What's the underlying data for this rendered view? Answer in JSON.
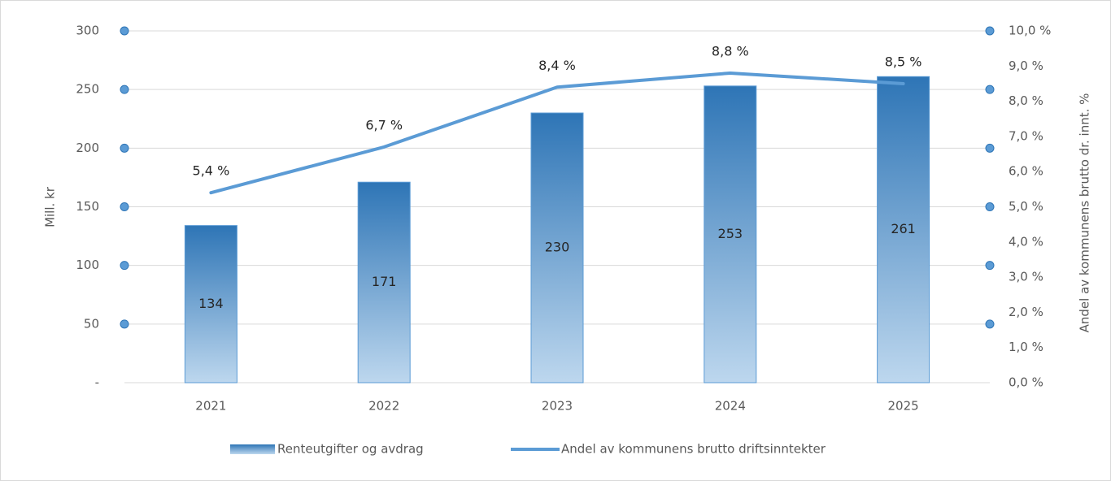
{
  "chart_data": {
    "type": "bar-line",
    "categories": [
      "2021",
      "2022",
      "2023",
      "2024",
      "2025"
    ],
    "series": [
      {
        "name": "Renteutgifter og avdrag",
        "type": "bar",
        "color": "#2e75b6",
        "values": [
          134,
          171,
          230,
          253,
          261
        ]
      },
      {
        "name": "Andel av kommunens brutto driftsinntekter",
        "type": "line",
        "axis": "y2",
        "color": "#5b9bd5",
        "values": [
          5.4,
          6.7,
          8.4,
          8.8,
          8.5
        ],
        "value_labels": [
          "5,4 %",
          "6,7 %",
          "8,4 %",
          "8,8 %",
          "8,5 %"
        ]
      }
    ],
    "ylabel": "Mill. kr",
    "y2label": "Andel av kommunens brutto dr. innt. %",
    "ylim": [
      0,
      300
    ],
    "yticks": [
      {
        "value": 0,
        "label": "-"
      },
      50,
      100,
      150,
      200,
      250,
      300
    ],
    "y2lim": [
      0,
      10
    ],
    "y2ticks": [
      {
        "value": 0,
        "label": "0,0 %"
      },
      {
        "value": 1,
        "label": "1,0 %"
      },
      {
        "value": 2,
        "label": "2,0 %"
      },
      {
        "value": 3,
        "label": "3,0 %"
      },
      {
        "value": 4,
        "label": "4,0 %"
      },
      {
        "value": 5,
        "label": "5,0 %"
      },
      {
        "value": 6,
        "label": "6,0 %"
      },
      {
        "value": 7,
        "label": "7,0 %"
      },
      {
        "value": 8,
        "label": "8,0 %"
      },
      {
        "value": 9,
        "label": "9,0 %"
      },
      {
        "value": 10,
        "label": "10,0 %"
      }
    ],
    "grid": true,
    "legend": "bottom"
  }
}
